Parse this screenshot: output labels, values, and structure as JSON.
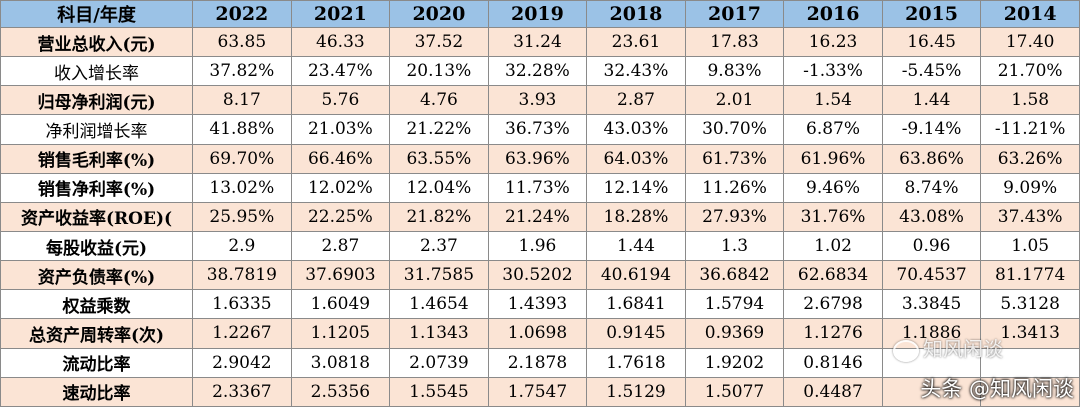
{
  "header": {
    "label": "科目/年度",
    "years": [
      "2022",
      "2021",
      "2020",
      "2019",
      "2018",
      "2017",
      "2016",
      "2015",
      "2014"
    ]
  },
  "rows": [
    {
      "label": "营业总收入(元)",
      "values": [
        "63.85",
        "46.33",
        "37.52",
        "31.24",
        "23.61",
        "17.83",
        "16.23",
        "16.45",
        "17.40"
      ]
    },
    {
      "label": "收入增长率",
      "values": [
        "37.82%",
        "23.47%",
        "20.13%",
        "32.28%",
        "32.43%",
        "9.83%",
        "-1.33%",
        "-5.45%",
        "21.70%"
      ]
    },
    {
      "label": "归母净利润(元)",
      "values": [
        "8.17",
        "5.76",
        "4.76",
        "3.93",
        "2.87",
        "2.01",
        "1.54",
        "1.44",
        "1.58"
      ]
    },
    {
      "label": "净利润增长率",
      "values": [
        "41.88%",
        "21.03%",
        "21.22%",
        "36.73%",
        "43.03%",
        "30.70%",
        "6.87%",
        "-9.14%",
        "-11.21%"
      ]
    },
    {
      "label": "销售毛利率(%)",
      "values": [
        "69.70%",
        "66.46%",
        "63.55%",
        "63.96%",
        "64.03%",
        "61.73%",
        "61.96%",
        "63.86%",
        "63.26%"
      ]
    },
    {
      "label": "销售净利率(%)",
      "values": [
        "13.02%",
        "12.02%",
        "12.04%",
        "11.73%",
        "12.14%",
        "11.26%",
        "9.46%",
        "8.74%",
        "9.09%"
      ]
    },
    {
      "label": "资产收益率(ROE)(",
      "values": [
        "25.95%",
        "22.25%",
        "21.82%",
        "21.24%",
        "18.28%",
        "27.93%",
        "31.76%",
        "43.08%",
        "37.43%"
      ]
    },
    {
      "label": "每股收益(元)",
      "values": [
        "2.9",
        "2.87",
        "2.37",
        "1.96",
        "1.44",
        "1.3",
        "1.02",
        "0.96",
        "1.05"
      ]
    },
    {
      "label": "资产负债率(%)",
      "values": [
        "38.7819",
        "37.6903",
        "31.7585",
        "30.5202",
        "40.6194",
        "36.6842",
        "62.6834",
        "70.4537",
        "81.1774"
      ]
    },
    {
      "label": "权益乘数",
      "values": [
        "1.6335",
        "1.6049",
        "1.4654",
        "1.4393",
        "1.6841",
        "1.5794",
        "2.6798",
        "3.3845",
        "5.3128"
      ]
    },
    {
      "label": "总资产周转率(次)",
      "values": [
        "1.2267",
        "1.1205",
        "1.1343",
        "1.0698",
        "0.9145",
        "0.9369",
        "1.1276",
        "1.1886",
        "1.3413"
      ]
    },
    {
      "label": "流动比率",
      "values": [
        "2.9042",
        "3.0818",
        "2.0739",
        "2.1878",
        "1.7618",
        "1.9202",
        "0.8146",
        "",
        ""
      ]
    },
    {
      "label": "速动比率",
      "values": [
        "2.3367",
        "2.5356",
        "1.5545",
        "1.7547",
        "1.5129",
        "1.5077",
        "0.4487",
        "",
        ""
      ]
    }
  ],
  "watermark": {
    "logo_text": "知风闲谈",
    "caption": "头条 @知风闲谈"
  }
}
